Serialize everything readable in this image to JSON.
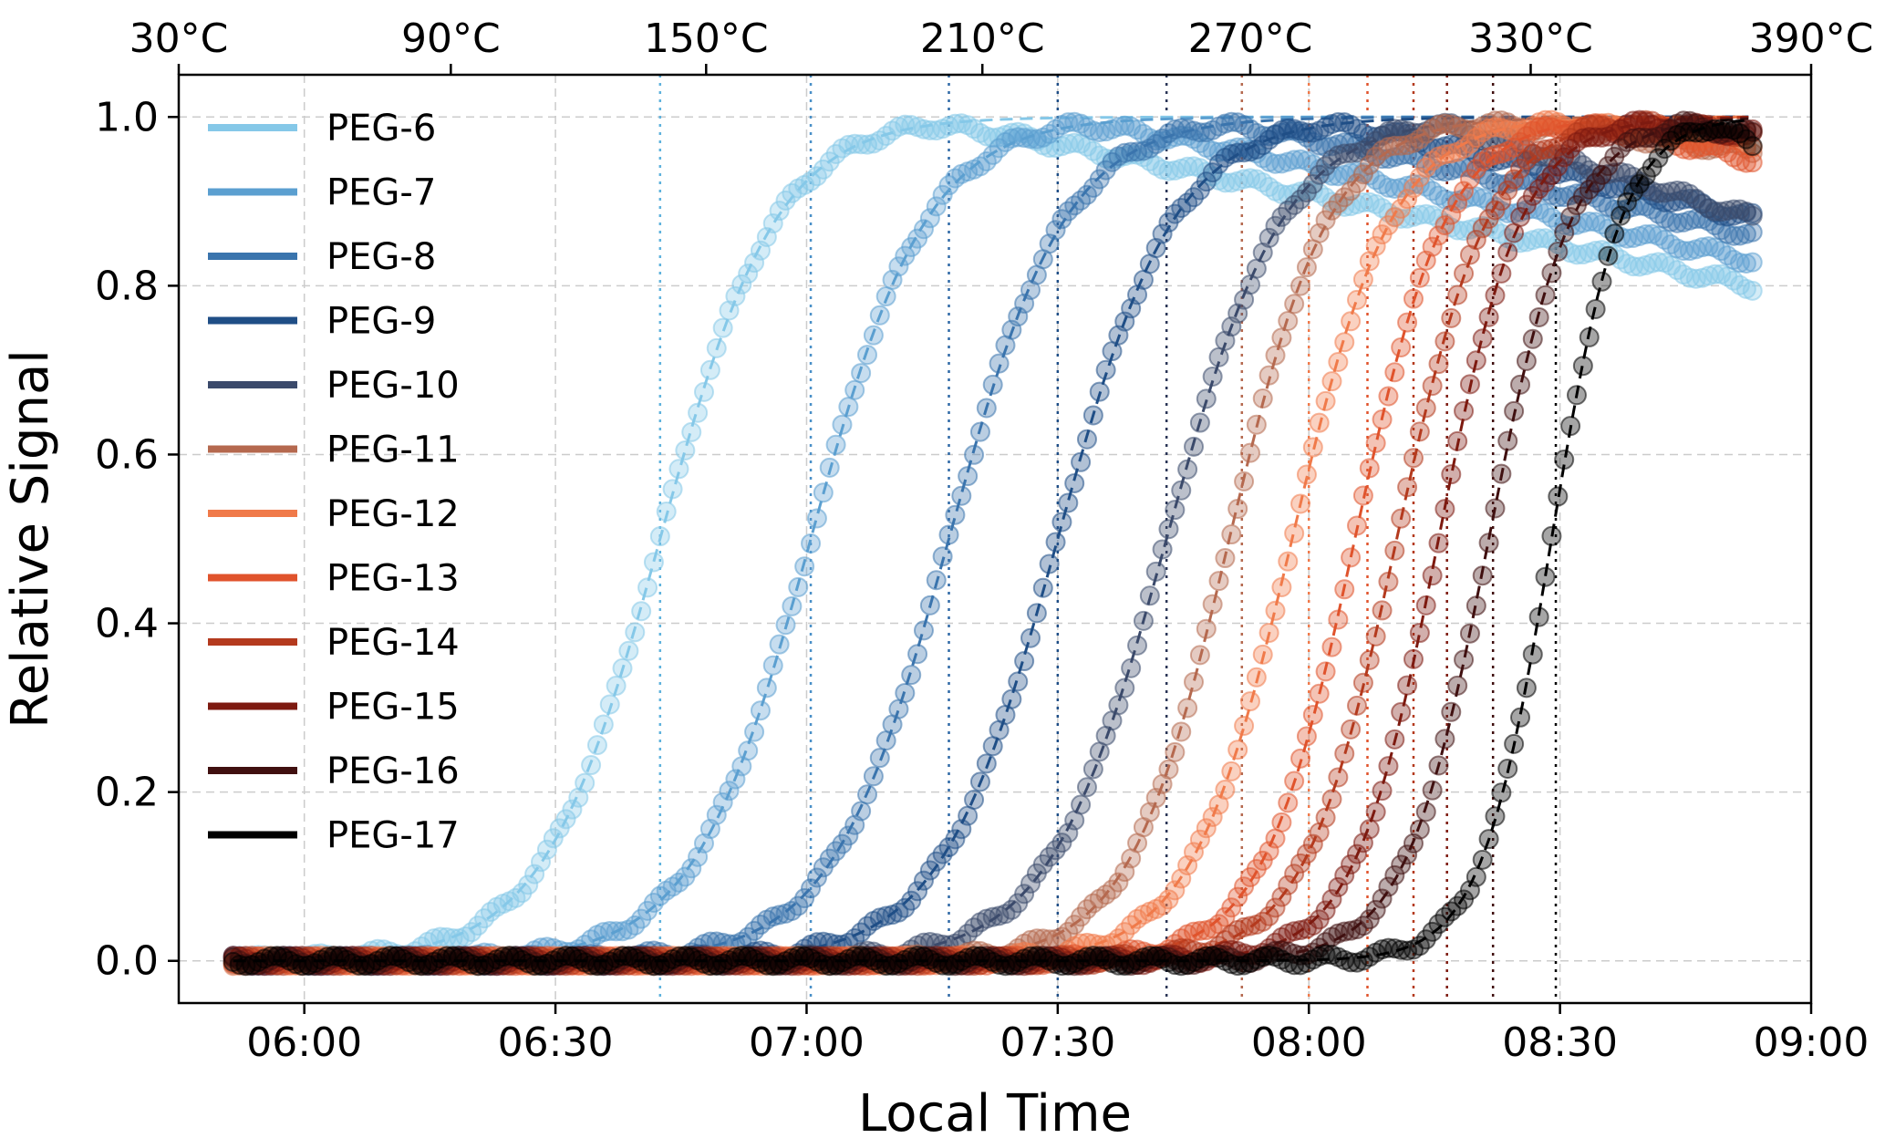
{
  "chart_data": {
    "type": "line",
    "xlabel": "Local Time",
    "ylabel": "Relative Signal",
    "x_units": "minutes after 06:00",
    "xlim": [
      -15,
      180
    ],
    "ylim": [
      -0.05,
      1.05
    ],
    "grid": true,
    "legend_position": "upper-left",
    "x_ticks": [
      {
        "value": 0,
        "label": "06:00"
      },
      {
        "value": 30,
        "label": "06:30"
      },
      {
        "value": 60,
        "label": "07:00"
      },
      {
        "value": 90,
        "label": "07:30"
      },
      {
        "value": 120,
        "label": "08:00"
      },
      {
        "value": 150,
        "label": "08:30"
      },
      {
        "value": 180,
        "label": "09:00"
      }
    ],
    "y_ticks": [
      {
        "value": 0.0,
        "label": "0.0"
      },
      {
        "value": 0.2,
        "label": "0.2"
      },
      {
        "value": 0.4,
        "label": "0.4"
      },
      {
        "value": 0.6,
        "label": "0.6"
      },
      {
        "value": 0.8,
        "label": "0.8"
      },
      {
        "value": 1.0,
        "label": "1.0"
      }
    ],
    "top_axis_ticks": [
      {
        "value": -15,
        "label": "30°C"
      },
      {
        "value": 17.5,
        "label": "90°C"
      },
      {
        "value": 48,
        "label": "150°C"
      },
      {
        "value": 81,
        "label": "210°C"
      },
      {
        "value": 113,
        "label": "270°C"
      },
      {
        "value": 146.5,
        "label": "330°C"
      },
      {
        "value": 180,
        "label": "390°C"
      }
    ],
    "x_start": -8.5,
    "x_end": 173,
    "series": [
      {
        "name": "PEG-6",
        "color": "#85c8e8",
        "midpoint": 42.5,
        "width": 7,
        "end_value": 0.8
      },
      {
        "name": "PEG-7",
        "color": "#5b9fd0",
        "midpoint": 60.5,
        "width": 7,
        "end_value": 0.83
      },
      {
        "name": "PEG-8",
        "color": "#3a74ad",
        "midpoint": 77,
        "width": 7,
        "end_value": 0.86
      },
      {
        "name": "PEG-9",
        "color": "#1f4e86",
        "midpoint": 90,
        "width": 7,
        "end_value": 0.88
      },
      {
        "name": "PEG-10",
        "color": "#3b4a6b",
        "midpoint": 103,
        "width": 7,
        "end_value": 0.88
      },
      {
        "name": "PEG-11",
        "color": "#b5694f",
        "midpoint": 110.5,
        "width": 6,
        "end_value": 0.96
      },
      {
        "name": "PEG-12",
        "color": "#f07a4a",
        "midpoint": 118,
        "width": 6,
        "end_value": 0.97
      },
      {
        "name": "PEG-13",
        "color": "#e0532c",
        "midpoint": 125.5,
        "width": 5.5,
        "end_value": 0.95
      },
      {
        "name": "PEG-14",
        "color": "#b43a1e",
        "midpoint": 130.5,
        "width": 5.5,
        "end_value": 0.98
      },
      {
        "name": "PEG-15",
        "color": "#7d1a10",
        "midpoint": 135.5,
        "width": 5,
        "end_value": 0.98
      },
      {
        "name": "PEG-16",
        "color": "#401010",
        "midpoint": 141.5,
        "width": 5,
        "end_value": 0.98
      },
      {
        "name": "PEG-17",
        "color": "#000000",
        "midpoint": 149,
        "width": 4.2,
        "end_value": 0.97
      }
    ],
    "vertical_reference_lines": [
      {
        "x": 42.5,
        "color": "#5fb2dd"
      },
      {
        "x": 60.5,
        "color": "#4a90c8"
      },
      {
        "x": 77,
        "color": "#2f69a6"
      },
      {
        "x": 90,
        "color": "#1f4e86"
      },
      {
        "x": 103,
        "color": "#2a3556"
      },
      {
        "x": 112,
        "color": "#b5694f"
      },
      {
        "x": 120,
        "color": "#f07a4a"
      },
      {
        "x": 127,
        "color": "#e0532c"
      },
      {
        "x": 132.5,
        "color": "#b43a1e"
      },
      {
        "x": 136.5,
        "color": "#7d1a10"
      },
      {
        "x": 142,
        "color": "#401010"
      },
      {
        "x": 149.5,
        "color": "#000000"
      }
    ]
  }
}
